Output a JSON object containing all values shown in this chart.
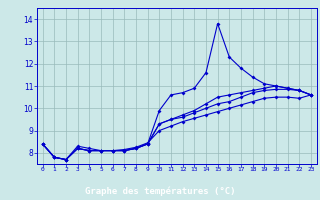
{
  "x_hours": [
    0,
    1,
    2,
    3,
    4,
    5,
    6,
    7,
    8,
    9,
    10,
    11,
    12,
    13,
    14,
    15,
    16,
    17,
    18,
    19,
    20,
    21,
    22,
    23
  ],
  "line1": [
    8.4,
    7.8,
    7.7,
    8.3,
    8.2,
    8.1,
    8.1,
    8.1,
    8.2,
    8.4,
    9.9,
    10.6,
    10.7,
    10.9,
    11.6,
    13.8,
    12.3,
    11.8,
    11.4,
    11.1,
    11.0,
    10.9,
    10.8,
    10.6
  ],
  "line2": [
    8.4,
    7.8,
    7.7,
    8.2,
    8.1,
    8.1,
    8.1,
    8.1,
    8.2,
    8.4,
    9.3,
    9.5,
    9.7,
    9.9,
    10.2,
    10.5,
    10.6,
    10.7,
    10.8,
    10.9,
    11.0,
    10.9,
    10.8,
    10.6
  ],
  "line3": [
    8.4,
    7.8,
    7.7,
    8.2,
    8.1,
    8.1,
    8.1,
    8.1,
    8.2,
    8.4,
    9.3,
    9.5,
    9.6,
    9.8,
    10.0,
    10.2,
    10.3,
    10.5,
    10.7,
    10.8,
    10.85,
    10.85,
    10.8,
    10.6
  ],
  "line4": [
    8.4,
    7.8,
    7.7,
    8.2,
    8.1,
    8.1,
    8.1,
    8.15,
    8.25,
    8.45,
    9.0,
    9.2,
    9.4,
    9.55,
    9.7,
    9.85,
    10.0,
    10.15,
    10.3,
    10.45,
    10.5,
    10.5,
    10.45,
    10.6
  ],
  "line_color": "#0000cc",
  "bg_color": "#cce8e8",
  "grid_color": "#99bbbb",
  "xlabel": "Graphe des températures (°C)",
  "xlabel_color": "#ffffff",
  "xlabel_bg": "#0000aa",
  "ylim": [
    7.5,
    14.5
  ],
  "yticks": [
    8,
    9,
    10,
    11,
    12,
    13,
    14
  ],
  "xlim": [
    -0.5,
    23.5
  ],
  "xticks": [
    0,
    1,
    2,
    3,
    4,
    5,
    6,
    7,
    8,
    9,
    10,
    11,
    12,
    13,
    14,
    15,
    16,
    17,
    18,
    19,
    20,
    21,
    22,
    23
  ]
}
